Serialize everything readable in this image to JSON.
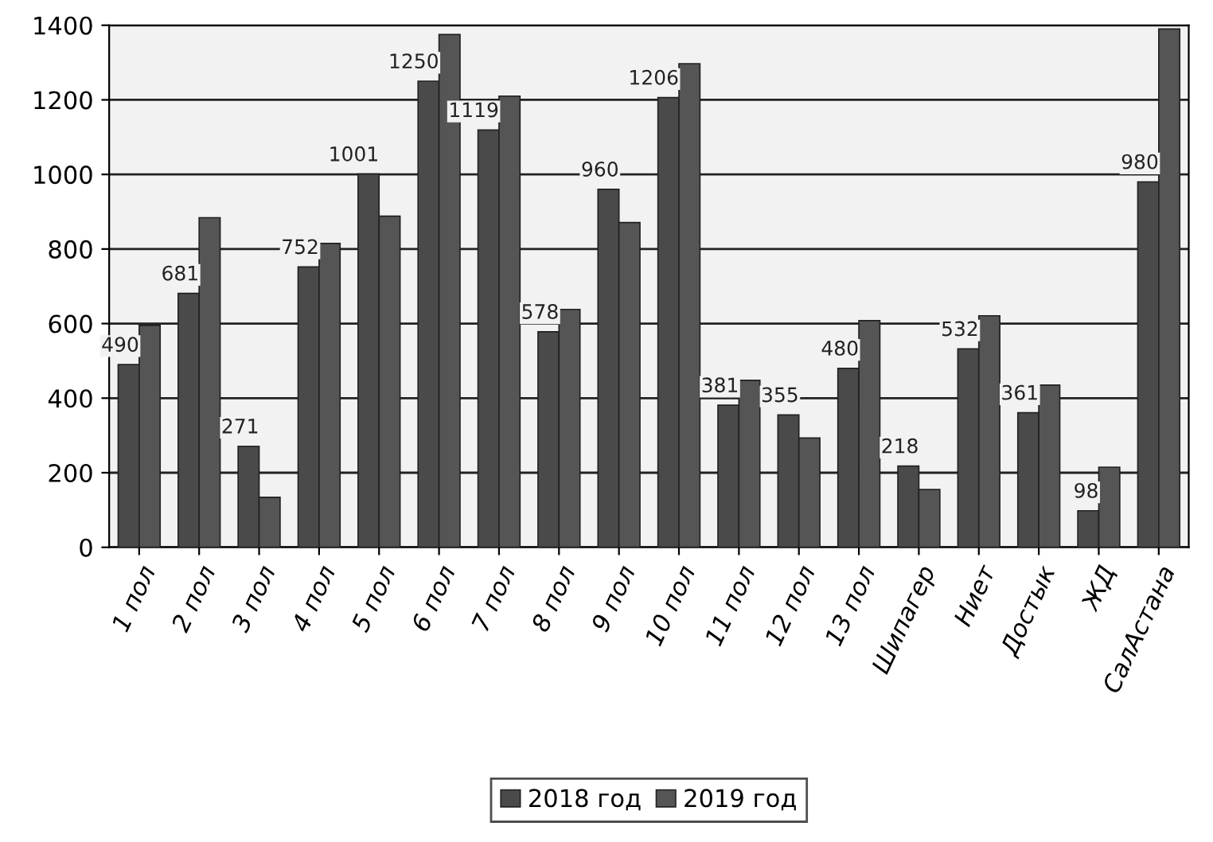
{
  "chart_data": {
    "type": "bar",
    "categories": [
      "1 пол",
      "2 пол",
      "3 пол",
      "4 пол",
      "5 пол",
      "6 пол",
      "7 пол",
      "8 пол",
      "9 пол",
      "10 пол",
      "11 пол",
      "12 пол",
      "13 пол",
      "Шипагер",
      "Ниет",
      "Достык",
      "ЖД",
      "СалАстана"
    ],
    "series": [
      {
        "name": "2018 год",
        "color": "#4a4a4a",
        "values": [
          490,
          681,
          271,
          752,
          1001,
          1250,
          1119,
          578,
          960,
          1206,
          381,
          355,
          480,
          218,
          532,
          361,
          98,
          980
        ],
        "value_labels": [
          "490",
          "681",
          "271",
          "752",
          "1001",
          "1250",
          "1119",
          "578",
          "960",
          "1206",
          "381",
          "355",
          "480",
          "218",
          "532",
          "361",
          "98",
          "980"
        ]
      },
      {
        "name": "2019 год",
        "color": "#555555",
        "values": [
          595,
          884,
          134,
          815,
          888,
          1375,
          1210,
          638,
          871,
          1297,
          448,
          293,
          608,
          155,
          621,
          435,
          215,
          1390
        ]
      }
    ],
    "ylim": [
      0,
      1400
    ],
    "yticks": [
      0,
      200,
      400,
      600,
      800,
      1000,
      1200,
      1400
    ],
    "grid": "y",
    "legend": "bottom"
  }
}
